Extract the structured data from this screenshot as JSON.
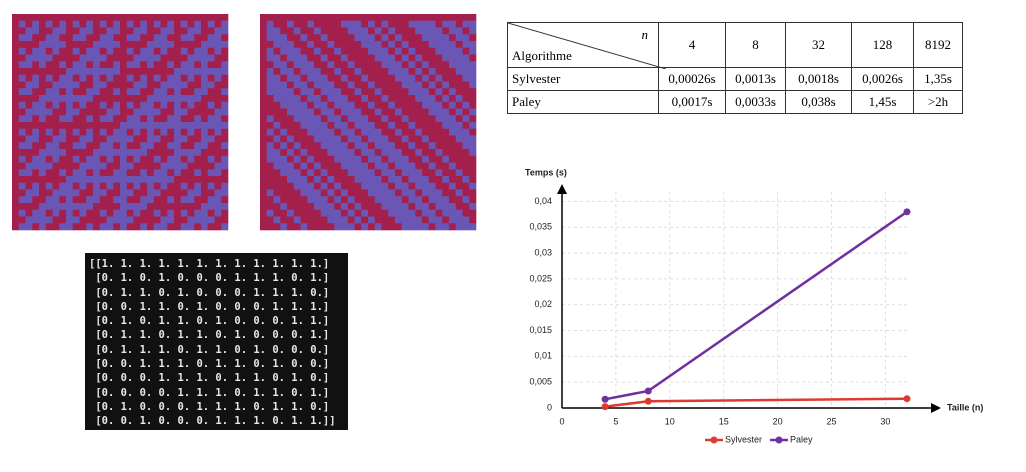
{
  "table": {
    "corner_top": "n",
    "corner_bottom": "Algorithme",
    "columns": [
      "4",
      "8",
      "32",
      "128",
      "8192"
    ],
    "rows": [
      [
        "Sylvester",
        "0,00026s",
        "0,0013s",
        "0,0018s",
        "0,0026s",
        "1,35s"
      ],
      [
        "Paley",
        "0,0017s",
        "0,0033s",
        "0,038s",
        "1,45s",
        ">2h"
      ]
    ]
  },
  "matrix_print": {
    "rows": [
      "[[1. 1. 1. 1. 1. 1. 1. 1. 1. 1. 1. 1.]",
      " [0. 1. 0. 1. 0. 0. 0. 1. 1. 1. 0. 1.]",
      " [0. 1. 1. 0. 1. 0. 0. 0. 1. 1. 1. 0.]",
      " [0. 0. 1. 1. 0. 1. 0. 0. 0. 1. 1. 1.]",
      " [0. 1. 0. 1. 1. 0. 1. 0. 0. 0. 1. 1.]",
      " [0. 1. 1. 0. 1. 1. 0. 1. 0. 0. 0. 1.]",
      " [0. 1. 1. 1. 0. 1. 1. 0. 1. 0. 0. 0.]",
      " [0. 0. 1. 1. 1. 0. 1. 1. 0. 1. 0. 0.]",
      " [0. 0. 0. 1. 1. 1. 0. 1. 1. 0. 1. 0.]",
      " [0. 0. 0. 0. 1. 1. 1. 0. 1. 1. 0. 1.]",
      " [0. 1. 0. 0. 0. 1. 1. 1. 0. 1. 1. 0.]",
      " [0. 0. 1. 0. 0. 0. 1. 1. 1. 0. 1. 1.]]"
    ]
  },
  "chart_data": {
    "type": "line",
    "y_label": "Temps (s)",
    "x_label": "Taille (n)",
    "x": [
      4,
      8,
      32
    ],
    "series": [
      {
        "name": "Sylvester",
        "color": "#e03a2e",
        "values": [
          0.00026,
          0.0013,
          0.0018
        ]
      },
      {
        "name": "Paley",
        "color": "#7030a0",
        "values": [
          0.0017,
          0.0033,
          0.038
        ]
      }
    ],
    "xlim": [
      0,
      34.6
    ],
    "xticks": [
      0,
      5,
      10,
      15,
      20,
      25,
      30
    ],
    "ylim": [
      0,
      0.043
    ],
    "yticks": [
      0,
      {
        "value": 0.005,
        "label": "0,005"
      },
      {
        "value": 0.01,
        "label": "0,01"
      },
      {
        "value": 0.015,
        "label": "0,015"
      },
      {
        "value": 0.02,
        "label": "0,02"
      },
      {
        "value": 0.025,
        "label": "0,025"
      },
      {
        "value": 0.03,
        "label": "0,03"
      },
      {
        "value": 0.035,
        "label": "0,035"
      },
      {
        "value": 0.04,
        "label": "0,04"
      }
    ],
    "grid": true,
    "legend": "bottom"
  }
}
